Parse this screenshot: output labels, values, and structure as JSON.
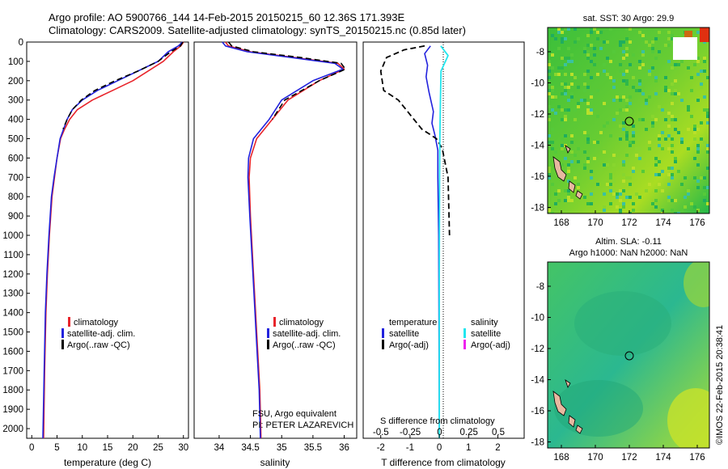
{
  "title": {
    "line1": "Argo profile: AO 5900766_144 14-Feb-2015 20150215_60 12.36S 171.393E",
    "line2": "Climatology: CARS2009. Satellite-adjusted climatology: synTS_20150215.nc (0.85d later)"
  },
  "colors": {
    "climatology": "#e8242b",
    "satellite": "#2222dd",
    "argo": "#000000",
    "satellite_salinity": "#22e6ee",
    "argo_salinity": "#ee22ee"
  },
  "chart_data": [
    {
      "name": "temperature-profile",
      "type": "line",
      "xlabel": "temperature (deg C)",
      "ylabel": "",
      "xlim": [
        -1,
        31
      ],
      "ylim": [
        2050,
        0
      ],
      "xticks": [
        "0",
        "5",
        "10",
        "15",
        "20",
        "25",
        "30"
      ],
      "yticks": [
        "0",
        "100",
        "200",
        "300",
        "400",
        "500",
        "600",
        "700",
        "800",
        "900",
        "1000",
        "1100",
        "1200",
        "1300",
        "1400",
        "1500",
        "1600",
        "1700",
        "1800",
        "1900",
        "2000"
      ],
      "legend": [
        "climatology",
        "satellite-adj. clim.",
        "Argo(..raw -QC)"
      ],
      "series": [
        {
          "name": "climatology",
          "x": [
            30,
            29.5,
            28,
            26,
            23,
            20,
            16,
            12,
            9,
            7.5,
            6.5,
            5.7,
            5,
            4.5,
            4,
            3.5,
            3.1,
            2.8,
            2.55,
            2.35
          ],
          "y": [
            0,
            20,
            50,
            100,
            150,
            200,
            250,
            300,
            350,
            400,
            450,
            500,
            600,
            700,
            800,
            1000,
            1200,
            1400,
            1700,
            2050
          ]
        },
        {
          "name": "satellite-adj. clim.",
          "x": [
            29.8,
            29,
            27,
            25,
            21,
            17,
            13,
            10,
            8,
            7,
            6.3,
            5.6,
            5,
            4.4,
            3.9,
            3.4,
            3,
            2.7,
            2.45,
            2.2
          ],
          "y": [
            0,
            20,
            50,
            100,
            150,
            200,
            250,
            300,
            350,
            400,
            450,
            500,
            600,
            700,
            800,
            1000,
            1200,
            1400,
            1700,
            2050
          ]
        },
        {
          "name": "Argo(..raw -QC)",
          "x": [
            29.9,
            29.4,
            27.5,
            25,
            21,
            16.5,
            12.5,
            9.8,
            8,
            7,
            6.2
          ],
          "y": [
            0,
            20,
            50,
            100,
            150,
            200,
            250,
            300,
            350,
            400,
            450
          ]
        }
      ]
    },
    {
      "name": "salinity-profile",
      "type": "line",
      "xlabel": "salinity",
      "xlim": [
        33.6,
        36.2
      ],
      "ylim": [
        2050,
        0
      ],
      "xticks": [
        "34",
        "34.5",
        "35",
        "35.5",
        "36"
      ],
      "legend": [
        "climatology",
        "satellite-adj. clim.",
        "Argo(..raw -QC)"
      ],
      "annotations": [
        "FSU, Argo equivalent",
        "PI: PETER LAZAREVICH"
      ],
      "series": [
        {
          "name": "climatology",
          "x": [
            34.1,
            34.15,
            34.5,
            35.2,
            35.9,
            36.0,
            35.6,
            35.1,
            34.85,
            34.6,
            34.5,
            34.48,
            34.5,
            34.55,
            34.6,
            34.65,
            34.67
          ],
          "y": [
            0,
            20,
            50,
            80,
            110,
            140,
            200,
            300,
            400,
            500,
            600,
            700,
            900,
            1200,
            1500,
            1800,
            2050
          ]
        },
        {
          "name": "satellite-adj. clim.",
          "x": [
            34.05,
            34.1,
            34.45,
            35.15,
            35.85,
            35.98,
            35.5,
            35.0,
            34.8,
            34.55,
            34.47,
            34.46,
            34.49,
            34.54,
            34.59,
            34.64,
            34.66
          ],
          "y": [
            0,
            20,
            50,
            80,
            110,
            140,
            200,
            300,
            400,
            500,
            600,
            700,
            900,
            1200,
            1500,
            1800,
            2050
          ]
        },
        {
          "name": "Argo(..raw -QC)",
          "x": [
            34.15,
            34.2,
            34.55,
            35.3,
            35.95,
            36.02,
            35.6,
            35.05,
            34.85
          ],
          "y": [
            0,
            20,
            50,
            80,
            110,
            140,
            200,
            300,
            400
          ]
        }
      ]
    },
    {
      "name": "difference-profile",
      "type": "line",
      "xlabel": "T difference from climatology",
      "xlabel_top": "S difference from climatology",
      "xlim": [
        -2.6,
        2.9
      ],
      "ylim": [
        2050,
        0
      ],
      "xticks": [
        "-2",
        "-1",
        "0",
        "1",
        "2"
      ],
      "xticks_top": [
        "-0.5",
        "-0.25",
        "0",
        "0.25",
        "0.5"
      ],
      "legend_left_title": "temperature",
      "legend_right_title": "salinity",
      "legend": [
        "satellite",
        "Argo(-adj)",
        "satellite",
        "Argo(-adj)"
      ],
      "series": [
        {
          "name": "T satellite",
          "x": [
            -0.3,
            -0.5,
            -0.4,
            -0.45,
            -0.35,
            -0.2,
            -0.25,
            -0.15,
            -0.05,
            -0.05,
            -0.02,
            -0.01,
            0
          ],
          "y": [
            20,
            60,
            120,
            180,
            260,
            360,
            420,
            480,
            560,
            700,
            1000,
            1500,
            2000
          ]
        },
        {
          "name": "T Argo(-adj)",
          "x": [
            -0.5,
            -1.2,
            -1.8,
            -2.0,
            -1.9,
            -1.4,
            -0.6,
            -0.1,
            0.1,
            0.3,
            0.35
          ],
          "y": [
            20,
            40,
            80,
            150,
            250,
            300,
            450,
            500,
            550,
            700,
            1000
          ]
        },
        {
          "name": "S satellite",
          "x": [
            0.05,
            0.3,
            0.06,
            0.04,
            0.02,
            0.01,
            0,
            0
          ],
          "y": [
            20,
            70,
            150,
            300,
            500,
            700,
            1200,
            2050
          ]
        }
      ]
    }
  ],
  "maps": {
    "sst": {
      "title": "sat. SST: 30 Argo: 29.9",
      "xticks": [
        "168",
        "170",
        "172",
        "174",
        "176"
      ],
      "yticks": [
        "-8",
        "-10",
        "-12",
        "-14",
        "-16",
        "-18"
      ]
    },
    "sla": {
      "title_line1": "Altim. SLA: -0.11",
      "title_line2": "Argo h1000: NaN h2000: NaN",
      "xticks": [
        "168",
        "170",
        "172",
        "174",
        "176"
      ],
      "yticks": [
        "-8",
        "-10",
        "-12",
        "-14",
        "-16",
        "-18"
      ]
    }
  },
  "watermark": "©IMOS 22-Feb-2015 20:38:41"
}
